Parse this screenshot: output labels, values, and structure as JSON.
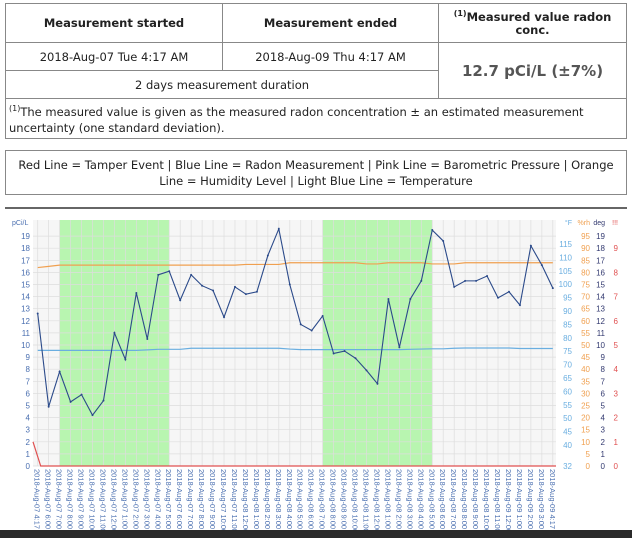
{
  "summary": {
    "started_label": "Measurement started",
    "ended_label": "Measurement ended",
    "value_label_sup": "(1)",
    "value_label": "Measured value radon conc.",
    "started": "2018-Aug-07 Tue 4:17 AM",
    "ended": "2018-Aug-09 Thu 4:17 AM",
    "duration": "2 days measurement duration",
    "value": "12.7 pCi/L (±7%)",
    "footnote_sup": "(1)",
    "footnote": "The measured value is given as the measured radon concentration ± an estimated measurement uncertainty (one standard deviation)."
  },
  "legend_text": "Red Line = Tamper Event | Blue Line = Radon Measurement | Pink Line = Barometric Pressure | Orange Line = Humidity Level | Light Blue Line = Temperature",
  "chart_data": {
    "type": "line",
    "ylabel": "pCi/L",
    "ylim": [
      0,
      19
    ],
    "grid": true,
    "colors": {
      "radon": "#2b4a8a",
      "tamper": "#e05050",
      "humidity": "#f0a050",
      "temperature": "#6aaee0",
      "highlight": "#b8f5b0"
    },
    "x": [
      "2018-Aug-07 4:17",
      "2018-Aug-07 6:00",
      "2018-Aug-07 7:00",
      "2018-Aug-07 8:00",
      "2018-Aug-07 9:00",
      "2018-Aug-07 10:00",
      "2018-Aug-07 11:00",
      "2018-Aug-07 12:00",
      "2018-Aug-07 1:00",
      "2018-Aug-07 2:00",
      "2018-Aug-07 3:00",
      "2018-Aug-07 4:00",
      "2018-Aug-07 5:00",
      "2018-Aug-07 6:00",
      "2018-Aug-07 7:00",
      "2018-Aug-07 8:00",
      "2018-Aug-07 9:00",
      "2018-Aug-07 10:00",
      "2018-Aug-07 11:00",
      "2018-Aug-08 12:00",
      "2018-Aug-08 1:00",
      "2018-Aug-08 2:00",
      "2018-Aug-08 3:00",
      "2018-Aug-08 4:00",
      "2018-Aug-08 5:00",
      "2018-Aug-08 6:00",
      "2018-Aug-08 7:00",
      "2018-Aug-08 8:00",
      "2018-Aug-08 9:00",
      "2018-Aug-08 10:00",
      "2018-Aug-08 11:00",
      "2018-Aug-08 12:00",
      "2018-Aug-08 1:00",
      "2018-Aug-08 2:00",
      "2018-Aug-08 3:00",
      "2018-Aug-08 4:00",
      "2018-Aug-08 5:00",
      "2018-Aug-08 6:00",
      "2018-Aug-08 7:00",
      "2018-Aug-08 8:00",
      "2018-Aug-08 9:00",
      "2018-Aug-08 10:00",
      "2018-Aug-08 11:00",
      "2018-Aug-09 12:00",
      "2018-Aug-09 1:00",
      "2018-Aug-09 2:00",
      "2018-Aug-09 3:00",
      "2018-Aug-09 4:17"
    ],
    "series": [
      {
        "name": "Radon Measurement",
        "unit": "pCi/L",
        "values": [
          12.6,
          4.9,
          7.8,
          5.3,
          5.9,
          4.2,
          5.4,
          11.0,
          8.8,
          14.3,
          10.5,
          15.8,
          16.1,
          13.7,
          15.8,
          14.9,
          14.5,
          12.3,
          14.8,
          14.2,
          14.4,
          17.4,
          19.6,
          15.0,
          11.7,
          11.2,
          12.4,
          9.3,
          9.5,
          8.9,
          7.9,
          6.8,
          13.8,
          9.8,
          13.8,
          15.3,
          19.5,
          18.6,
          14.8,
          15.3,
          15.3,
          15.7,
          13.9,
          14.4,
          13.3,
          18.2,
          16.6,
          14.7
        ]
      },
      {
        "name": "Tamper Event",
        "unit": "!!!",
        "values": [
          1,
          0,
          0,
          0,
          0,
          0,
          0,
          0,
          0,
          0,
          0,
          0,
          0,
          0,
          0,
          0,
          0,
          0,
          0,
          0,
          0,
          0,
          0,
          0,
          0,
          0,
          0,
          0,
          0,
          0,
          0,
          0,
          0,
          0,
          0,
          0,
          0,
          0,
          0,
          0,
          0,
          0,
          0,
          0,
          0,
          0,
          0,
          0
        ]
      },
      {
        "name": "Humidity Level",
        "unit": "%rh",
        "values": [
          82,
          82.5,
          83,
          83,
          83,
          83,
          83,
          83,
          83,
          83,
          83,
          83,
          83,
          83,
          83,
          83,
          83,
          83,
          83,
          83.3,
          83.3,
          83.3,
          83.3,
          84,
          84,
          84,
          84,
          84,
          84,
          84,
          83.5,
          83.5,
          84,
          84,
          84,
          84,
          83.5,
          83.5,
          83.5,
          84,
          84,
          84,
          84,
          84,
          84,
          84,
          84,
          84
        ]
      },
      {
        "name": "Temperature",
        "unit": "°F",
        "values": [
          75.3,
          75.3,
          75.3,
          75.3,
          75.3,
          75.3,
          75.3,
          75.3,
          75.3,
          75.3,
          75.5,
          75.7,
          75.7,
          75.7,
          76.1,
          76.1,
          76.1,
          76.1,
          76.1,
          76.1,
          76.1,
          76.1,
          76.1,
          75.8,
          75.6,
          75.6,
          75.6,
          75.6,
          75.6,
          75.6,
          75.6,
          75.6,
          75.6,
          75.6,
          75.7,
          75.8,
          75.9,
          75.9,
          76.1,
          76.2,
          76.2,
          76.2,
          76.2,
          76.2,
          76.0,
          76.0,
          76.0,
          76.0
        ]
      }
    ],
    "highlight_ranges": [
      [
        2,
        12
      ],
      [
        26,
        36
      ]
    ],
    "right_axes": [
      {
        "label": "°F",
        "ticks": [
          32,
          40,
          45,
          50,
          55,
          60,
          65,
          70,
          75,
          80,
          85,
          90,
          95,
          100,
          105,
          110,
          115
        ]
      },
      {
        "label": "%rh",
        "ticks": [
          0,
          5,
          10,
          15,
          20,
          25,
          30,
          35,
          40,
          45,
          50,
          55,
          60,
          65,
          70,
          75,
          80,
          85,
          90,
          95
        ]
      },
      {
        "label": "deg",
        "ticks": [
          0,
          1,
          2,
          3,
          4,
          5,
          6,
          7,
          8,
          9,
          10,
          11,
          12,
          13,
          14,
          15,
          16,
          17,
          18,
          19
        ]
      },
      {
        "label": "!!!",
        "ticks": [
          0,
          1,
          2,
          3,
          4,
          5,
          6,
          7,
          8,
          9
        ]
      }
    ]
  }
}
